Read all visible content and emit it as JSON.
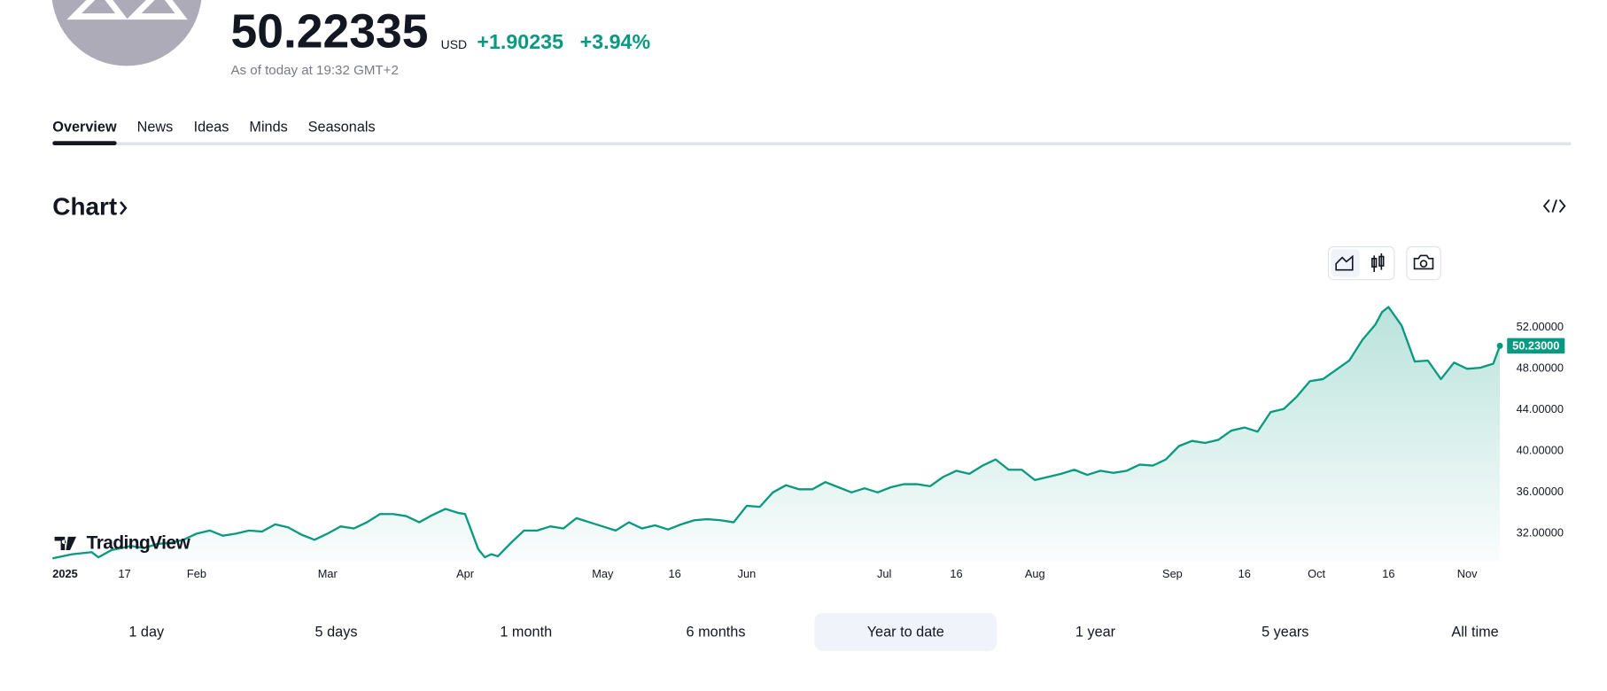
{
  "header": {
    "price": "50.22335",
    "currency": "USD",
    "change": "+1.90235",
    "change_percent": "+3.94%",
    "timestamp": "As of today at 19:32 GMT+2"
  },
  "tabs": [
    "Overview",
    "News",
    "Ideas",
    "Minds",
    "Seasonals"
  ],
  "section_title": "Chart",
  "chart_data": {
    "type": "line",
    "color": "#089981",
    "watermark": "TradingView",
    "x": [
      0,
      3,
      6,
      7,
      9,
      12,
      14,
      16,
      18,
      20,
      22,
      24,
      26,
      28,
      30,
      32,
      34,
      36,
      38,
      40,
      42,
      44,
      46,
      48,
      50,
      52,
      54,
      56,
      58,
      60,
      62,
      63,
      65,
      66,
      67,
      68,
      70,
      72,
      74,
      76,
      78,
      80,
      82,
      84,
      86,
      88,
      90,
      92,
      94,
      96,
      98,
      100,
      102,
      104,
      106,
      108,
      110,
      112,
      114,
      116,
      118,
      120,
      122,
      124,
      126,
      128,
      130,
      132,
      134,
      136,
      138,
      140,
      142,
      144,
      146,
      148,
      150,
      152,
      154,
      156,
      158,
      160,
      162,
      164,
      166,
      168,
      170,
      172,
      174,
      176,
      178,
      180,
      182,
      184,
      186,
      188,
      190,
      192,
      194,
      196,
      198,
      200,
      202,
      203,
      204,
      206,
      208,
      210,
      212,
      214,
      216,
      218,
      220,
      221
    ],
    "values": [
      29.6,
      30.0,
      30.2,
      29.7,
      30.4,
      30.8,
      30.6,
      31.0,
      31.1,
      31.4,
      32.0,
      32.3,
      31.8,
      32.0,
      32.3,
      32.2,
      32.9,
      32.6,
      31.9,
      31.4,
      32.0,
      32.7,
      32.5,
      33.1,
      33.9,
      33.9,
      33.7,
      33.1,
      33.8,
      34.4,
      34.0,
      33.9,
      30.5,
      29.7,
      30.0,
      29.8,
      31.1,
      32.3,
      32.3,
      32.7,
      32.5,
      33.5,
      33.1,
      32.7,
      32.3,
      33.1,
      32.5,
      32.8,
      32.4,
      32.9,
      33.3,
      33.4,
      33.3,
      33.1,
      34.7,
      34.6,
      36.0,
      36.7,
      36.3,
      36.3,
      37.0,
      36.5,
      36.0,
      36.4,
      36.0,
      36.5,
      36.8,
      36.8,
      36.6,
      37.5,
      38.1,
      37.8,
      38.6,
      39.2,
      38.2,
      38.2,
      37.2,
      37.5,
      37.8,
      38.2,
      37.7,
      38.1,
      37.9,
      38.1,
      38.7,
      38.6,
      39.2,
      40.5,
      41.0,
      40.8,
      41.1,
      42.0,
      42.3,
      41.9,
      43.8,
      44.1,
      45.3,
      46.8,
      47.0,
      47.9,
      48.8,
      50.8,
      52.3,
      53.5,
      54.0,
      52.2,
      48.7,
      48.8,
      47.0,
      48.6,
      48.0,
      48.1,
      48.5,
      50.23
    ],
    "xlim": [
      0,
      221
    ],
    "xticks": [
      {
        "value": 0,
        "label": "2025"
      },
      {
        "value": 11,
        "label": "17"
      },
      {
        "value": 22,
        "label": "Feb"
      },
      {
        "value": 42,
        "label": "Mar"
      },
      {
        "value": 63,
        "label": "Apr"
      },
      {
        "value": 84,
        "label": "May"
      },
      {
        "value": 95,
        "label": "16"
      },
      {
        "value": 106,
        "label": "Jun"
      },
      {
        "value": 127,
        "label": "Jul"
      },
      {
        "value": 138,
        "label": "16"
      },
      {
        "value": 150,
        "label": "Aug"
      },
      {
        "value": 171,
        "label": "Sep"
      },
      {
        "value": 182,
        "label": "16"
      },
      {
        "value": 193,
        "label": "Oct"
      },
      {
        "value": 204,
        "label": "16"
      },
      {
        "value": 216,
        "label": "Nov"
      }
    ],
    "ylim": [
      29.3,
      54.8
    ],
    "yticks": [
      {
        "value": 32,
        "label": "32.00000"
      },
      {
        "value": 36,
        "label": "36.00000"
      },
      {
        "value": 40,
        "label": "40.00000"
      },
      {
        "value": 44,
        "label": "44.00000"
      },
      {
        "value": 48,
        "label": "48.00000"
      },
      {
        "value": 52,
        "label": "52.00000"
      }
    ],
    "price_label": {
      "value": 50.23,
      "label": "50.23000"
    },
    "grid": false
  },
  "ranges": [
    {
      "label": "1 day",
      "active": false
    },
    {
      "label": "5 days",
      "active": false
    },
    {
      "label": "1 month",
      "active": false
    },
    {
      "label": "6 months",
      "active": false
    },
    {
      "label": "Year to date",
      "active": true
    },
    {
      "label": "1 year",
      "active": false
    },
    {
      "label": "5 years",
      "active": false
    },
    {
      "label": "All time",
      "active": false
    }
  ]
}
